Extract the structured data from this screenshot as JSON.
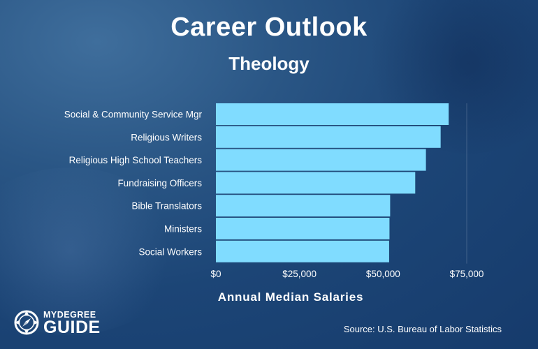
{
  "header": {
    "title": "Career Outlook",
    "subtitle": "Theology"
  },
  "chart_data": {
    "type": "bar",
    "orientation": "horizontal",
    "title": "Career Outlook",
    "subtitle": "Theology",
    "xlabel": "Annual Median Salaries",
    "ylabel": "",
    "categories": [
      "Social & Community Service Mgr",
      "Religious Writers",
      "Religious High School Teachers",
      "Fundraising Officers",
      "Bible Translators",
      "Ministers",
      "Social Workers"
    ],
    "values": [
      69600,
      67200,
      62800,
      59600,
      52100,
      51900,
      51800
    ],
    "xlim": [
      0,
      75000
    ],
    "ticks": [
      0,
      25000,
      50000,
      75000
    ],
    "tick_labels": [
      "$0",
      "$25,000",
      "$50,000",
      "$75,000"
    ],
    "bar_color": "#80dcff",
    "grid": false,
    "legend": "none"
  },
  "footer": {
    "source": "Source: U.S. Bureau of Labor Statistics",
    "logo_top": "MYDEGREE",
    "logo_bottom": "GUIDE"
  },
  "colors": {
    "background": "#1c4576",
    "bar": "#80dcff",
    "text": "#ffffff"
  }
}
